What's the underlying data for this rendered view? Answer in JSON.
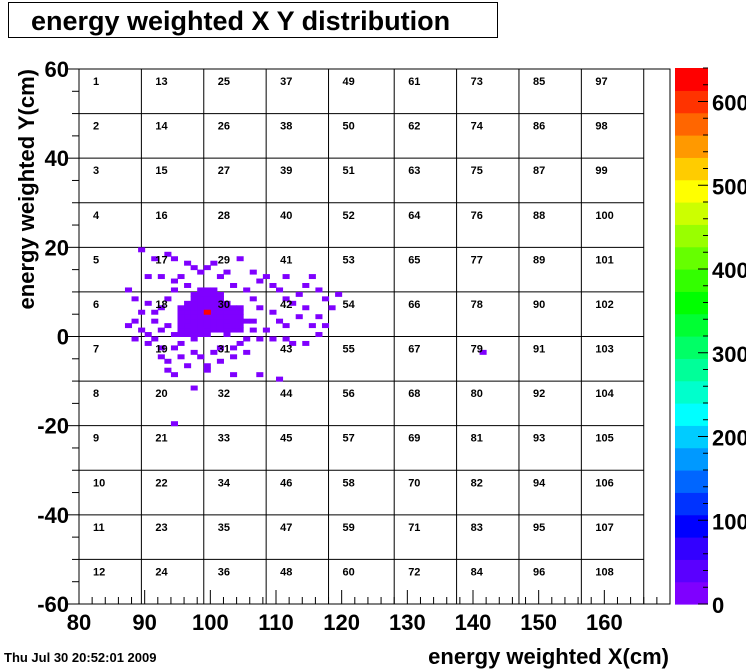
{
  "chart_data": {
    "type": "heatmap",
    "title": "energy weighted X Y distribution",
    "xlabel": "energy weighted X(cm)",
    "ylabel": "energy weighted Y(cm)",
    "xlim": [
      80,
      170
    ],
    "ylim": [
      -60,
      60
    ],
    "x_ticks": [
      80,
      90,
      100,
      110,
      120,
      130,
      140,
      150,
      160
    ],
    "y_ticks": [
      -60,
      -40,
      -20,
      0,
      20,
      40,
      60
    ],
    "z_range": [
      0,
      640
    ],
    "z_ticks": [
      0,
      100,
      200,
      300,
      400,
      500,
      600
    ],
    "palette": [
      "#7f00ff",
      "#5a00ff",
      "#3300ff",
      "#0000ff",
      "#0033ff",
      "#0066ff",
      "#0099ff",
      "#00ccff",
      "#00ffff",
      "#00ffcc",
      "#00ff99",
      "#00ff66",
      "#00ff33",
      "#00ff00",
      "#33ff00",
      "#66ff00",
      "#99ff00",
      "#ccff00",
      "#ffff00",
      "#ffcc00",
      "#ff9900",
      "#ff6600",
      "#ff3300",
      "#ff0000"
    ],
    "grid_x_edges": [
      80,
      89.5,
      99,
      108.5,
      118,
      128,
      137.5,
      147,
      156.5,
      166
    ],
    "grid_y_edges": [
      60,
      50,
      40,
      30,
      20,
      10,
      0,
      -10,
      -20,
      -30,
      -40,
      -50,
      -60
    ],
    "cell_numbers": [
      [
        1,
        13,
        25,
        37,
        49,
        61,
        73,
        85,
        97
      ],
      [
        2,
        14,
        26,
        38,
        50,
        62,
        74,
        86,
        98
      ],
      [
        3,
        15,
        27,
        39,
        51,
        63,
        75,
        87,
        99
      ],
      [
        4,
        16,
        28,
        40,
        52,
        64,
        76,
        88,
        100
      ],
      [
        5,
        17,
        29,
        41,
        53,
        65,
        77,
        89,
        101
      ],
      [
        6,
        18,
        30,
        42,
        54,
        66,
        78,
        90,
        102
      ],
      [
        7,
        19,
        31,
        43,
        55,
        67,
        79,
        91,
        103
      ],
      [
        8,
        20,
        32,
        44,
        56,
        68,
        80,
        92,
        104
      ],
      [
        9,
        21,
        33,
        45,
        57,
        69,
        81,
        93,
        105
      ],
      [
        10,
        22,
        34,
        46,
        58,
        70,
        82,
        94,
        106
      ],
      [
        11,
        23,
        35,
        47,
        59,
        71,
        83,
        95,
        107
      ],
      [
        12,
        24,
        36,
        48,
        60,
        72,
        84,
        96,
        108
      ]
    ],
    "bin_width": [
      1,
      1
    ],
    "cluster_blobs": [
      {
        "cx": 99.5,
        "cy": 5.5,
        "rx": 4.5,
        "ry": 4.0,
        "value": 15
      },
      {
        "cx": 97.5,
        "cy": 3.0,
        "rx": 3.0,
        "ry": 3.5,
        "value": 15
      },
      {
        "cx": 102.5,
        "cy": 3.5,
        "rx": 3.0,
        "ry": 3.0,
        "value": 15
      },
      {
        "cx": 99.5,
        "cy": 9.5,
        "rx": 2.5,
        "ry": 1.5,
        "value": 15
      }
    ],
    "scatter_bins": [
      [
        89,
        19
      ],
      [
        93,
        18
      ],
      [
        91,
        17
      ],
      [
        94,
        17
      ],
      [
        96,
        16
      ],
      [
        100,
        16
      ],
      [
        104,
        17
      ],
      [
        102,
        14
      ],
      [
        97,
        15
      ],
      [
        98,
        14
      ],
      [
        90,
        13
      ],
      [
        92,
        13
      ],
      [
        94,
        12
      ],
      [
        95,
        13
      ],
      [
        99,
        15
      ],
      [
        101,
        13
      ],
      [
        106,
        14
      ],
      [
        107,
        12
      ],
      [
        108,
        13
      ],
      [
        109,
        11
      ],
      [
        111,
        13
      ],
      [
        115,
        13
      ],
      [
        114,
        11
      ],
      [
        116,
        10
      ],
      [
        113,
        9
      ],
      [
        117,
        8
      ],
      [
        119,
        9
      ],
      [
        110,
        10
      ],
      [
        111,
        8
      ],
      [
        112,
        7
      ],
      [
        118,
        6
      ],
      [
        114,
        6
      ],
      [
        116,
        4
      ],
      [
        109,
        5
      ],
      [
        110,
        3
      ],
      [
        111,
        2
      ],
      [
        108,
        1
      ],
      [
        106,
        1
      ],
      [
        107,
        -1
      ],
      [
        109,
        -1
      ],
      [
        111,
        -1
      ],
      [
        112,
        -2
      ],
      [
        114,
        -2
      ],
      [
        116,
        0
      ],
      [
        115,
        2
      ],
      [
        117,
        2
      ],
      [
        87,
        10
      ],
      [
        88,
        8
      ],
      [
        90,
        7
      ],
      [
        89,
        5
      ],
      [
        88,
        3
      ],
      [
        87,
        2
      ],
      [
        89,
        1
      ],
      [
        90,
        0
      ],
      [
        91,
        -1
      ],
      [
        88,
        -1
      ],
      [
        90,
        -2
      ],
      [
        92,
        -3
      ],
      [
        94,
        -3
      ],
      [
        95,
        -5
      ],
      [
        97,
        -4
      ],
      [
        98,
        -5
      ],
      [
        100,
        -4
      ],
      [
        101,
        -3
      ],
      [
        103,
        -3
      ],
      [
        105,
        -4
      ],
      [
        93,
        -6
      ],
      [
        96,
        -7
      ],
      [
        99,
        -7
      ],
      [
        101,
        -6
      ],
      [
        93,
        -8
      ],
      [
        94,
        -9
      ],
      [
        99,
        -8
      ],
      [
        103,
        -9
      ],
      [
        107,
        -9
      ],
      [
        110,
        -10
      ],
      [
        97,
        -12
      ],
      [
        94,
        -20
      ],
      [
        92,
        -5
      ],
      [
        105,
        -1
      ],
      [
        104,
        -2
      ],
      [
        103,
        -5
      ],
      [
        106,
        8
      ],
      [
        107,
        6
      ],
      [
        105,
        10
      ],
      [
        103,
        11
      ],
      [
        96,
        11
      ],
      [
        94,
        10
      ],
      [
        93,
        8
      ],
      [
        92,
        6
      ],
      [
        93,
        2
      ],
      [
        94,
        0
      ],
      [
        95,
        -2
      ],
      [
        91,
        5
      ],
      [
        91,
        3
      ],
      [
        92,
        1
      ],
      [
        141,
        -4
      ],
      [
        113,
        4
      ],
      [
        104,
        6
      ],
      [
        106,
        3
      ]
    ],
    "peak_bin": {
      "x": 99,
      "y": 5,
      "value": 640
    }
  },
  "timestamp": "Thu Jul 30 20:52:01 2009"
}
